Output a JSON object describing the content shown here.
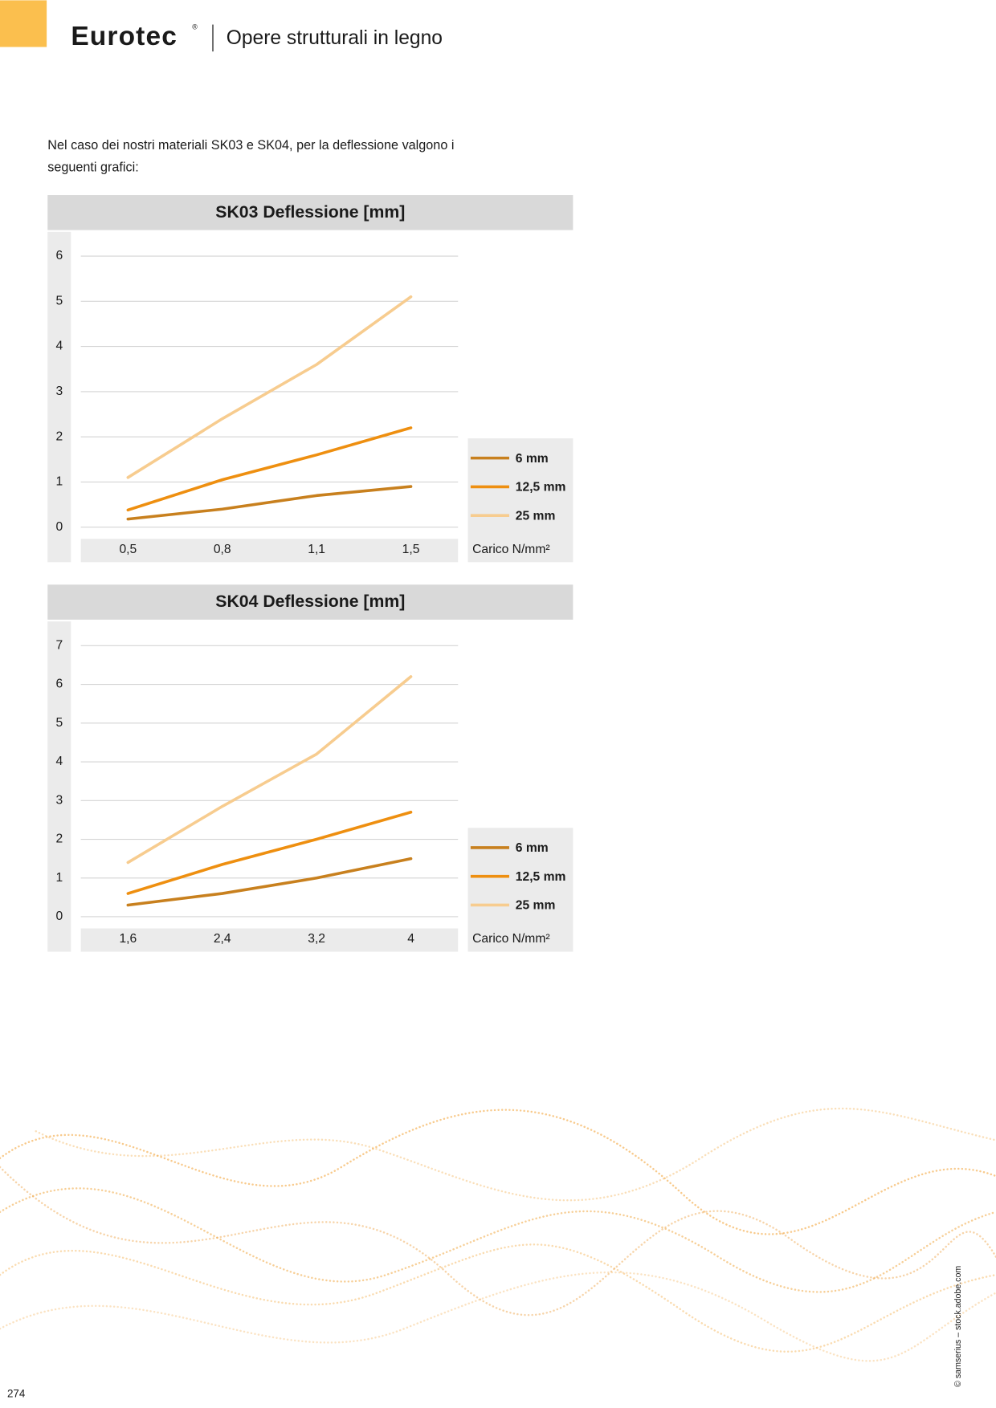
{
  "header": {
    "brand": "Eurotec",
    "mark": "®",
    "title": "Opere strutturali in legno"
  },
  "intro": [
    "Nel caso dei nostri materiali SK03 e SK04, per la deflessione valgono i",
    "seguenti grafici:"
  ],
  "chart_data": [
    {
      "type": "line",
      "title": "SK03 Deflessione [mm]",
      "x_label": "Carico N/mm²",
      "categories": [
        "0,5",
        "0,8",
        "1,1",
        "1,5"
      ],
      "series": [
        {
          "name": "6 mm",
          "color": "#c8801e",
          "values": [
            0.18,
            0.4,
            0.7,
            0.9
          ]
        },
        {
          "name": "12,5 mm",
          "color": "#ee8f10",
          "values": [
            0.38,
            1.05,
            1.6,
            2.2
          ]
        },
        {
          "name": "25 mm",
          "color": "#f7cc8f",
          "values": [
            1.1,
            2.4,
            3.6,
            5.1
          ]
        }
      ],
      "ylim": [
        0,
        6
      ],
      "yticks": [
        0,
        1,
        2,
        3,
        4,
        5,
        6
      ],
      "grid": true
    },
    {
      "type": "line",
      "title": "SK04 Deflessione [mm]",
      "x_label": "Carico N/mm²",
      "categories": [
        "1,6",
        "2,4",
        "3,2",
        "4"
      ],
      "series": [
        {
          "name": "6 mm",
          "color": "#c8801e",
          "values": [
            0.3,
            0.6,
            1.0,
            1.5
          ]
        },
        {
          "name": "12,5 mm",
          "color": "#ee8f10",
          "values": [
            0.6,
            1.35,
            2.0,
            2.7
          ]
        },
        {
          "name": "25 mm",
          "color": "#f7cc8f",
          "values": [
            1.4,
            2.85,
            4.2,
            6.2
          ]
        }
      ],
      "ylim": [
        0,
        7
      ],
      "yticks": [
        0,
        1,
        2,
        3,
        4,
        5,
        6,
        7
      ],
      "grid": true
    }
  ],
  "credit": "© samserius – stock.adobe.com",
  "page_number": "274"
}
